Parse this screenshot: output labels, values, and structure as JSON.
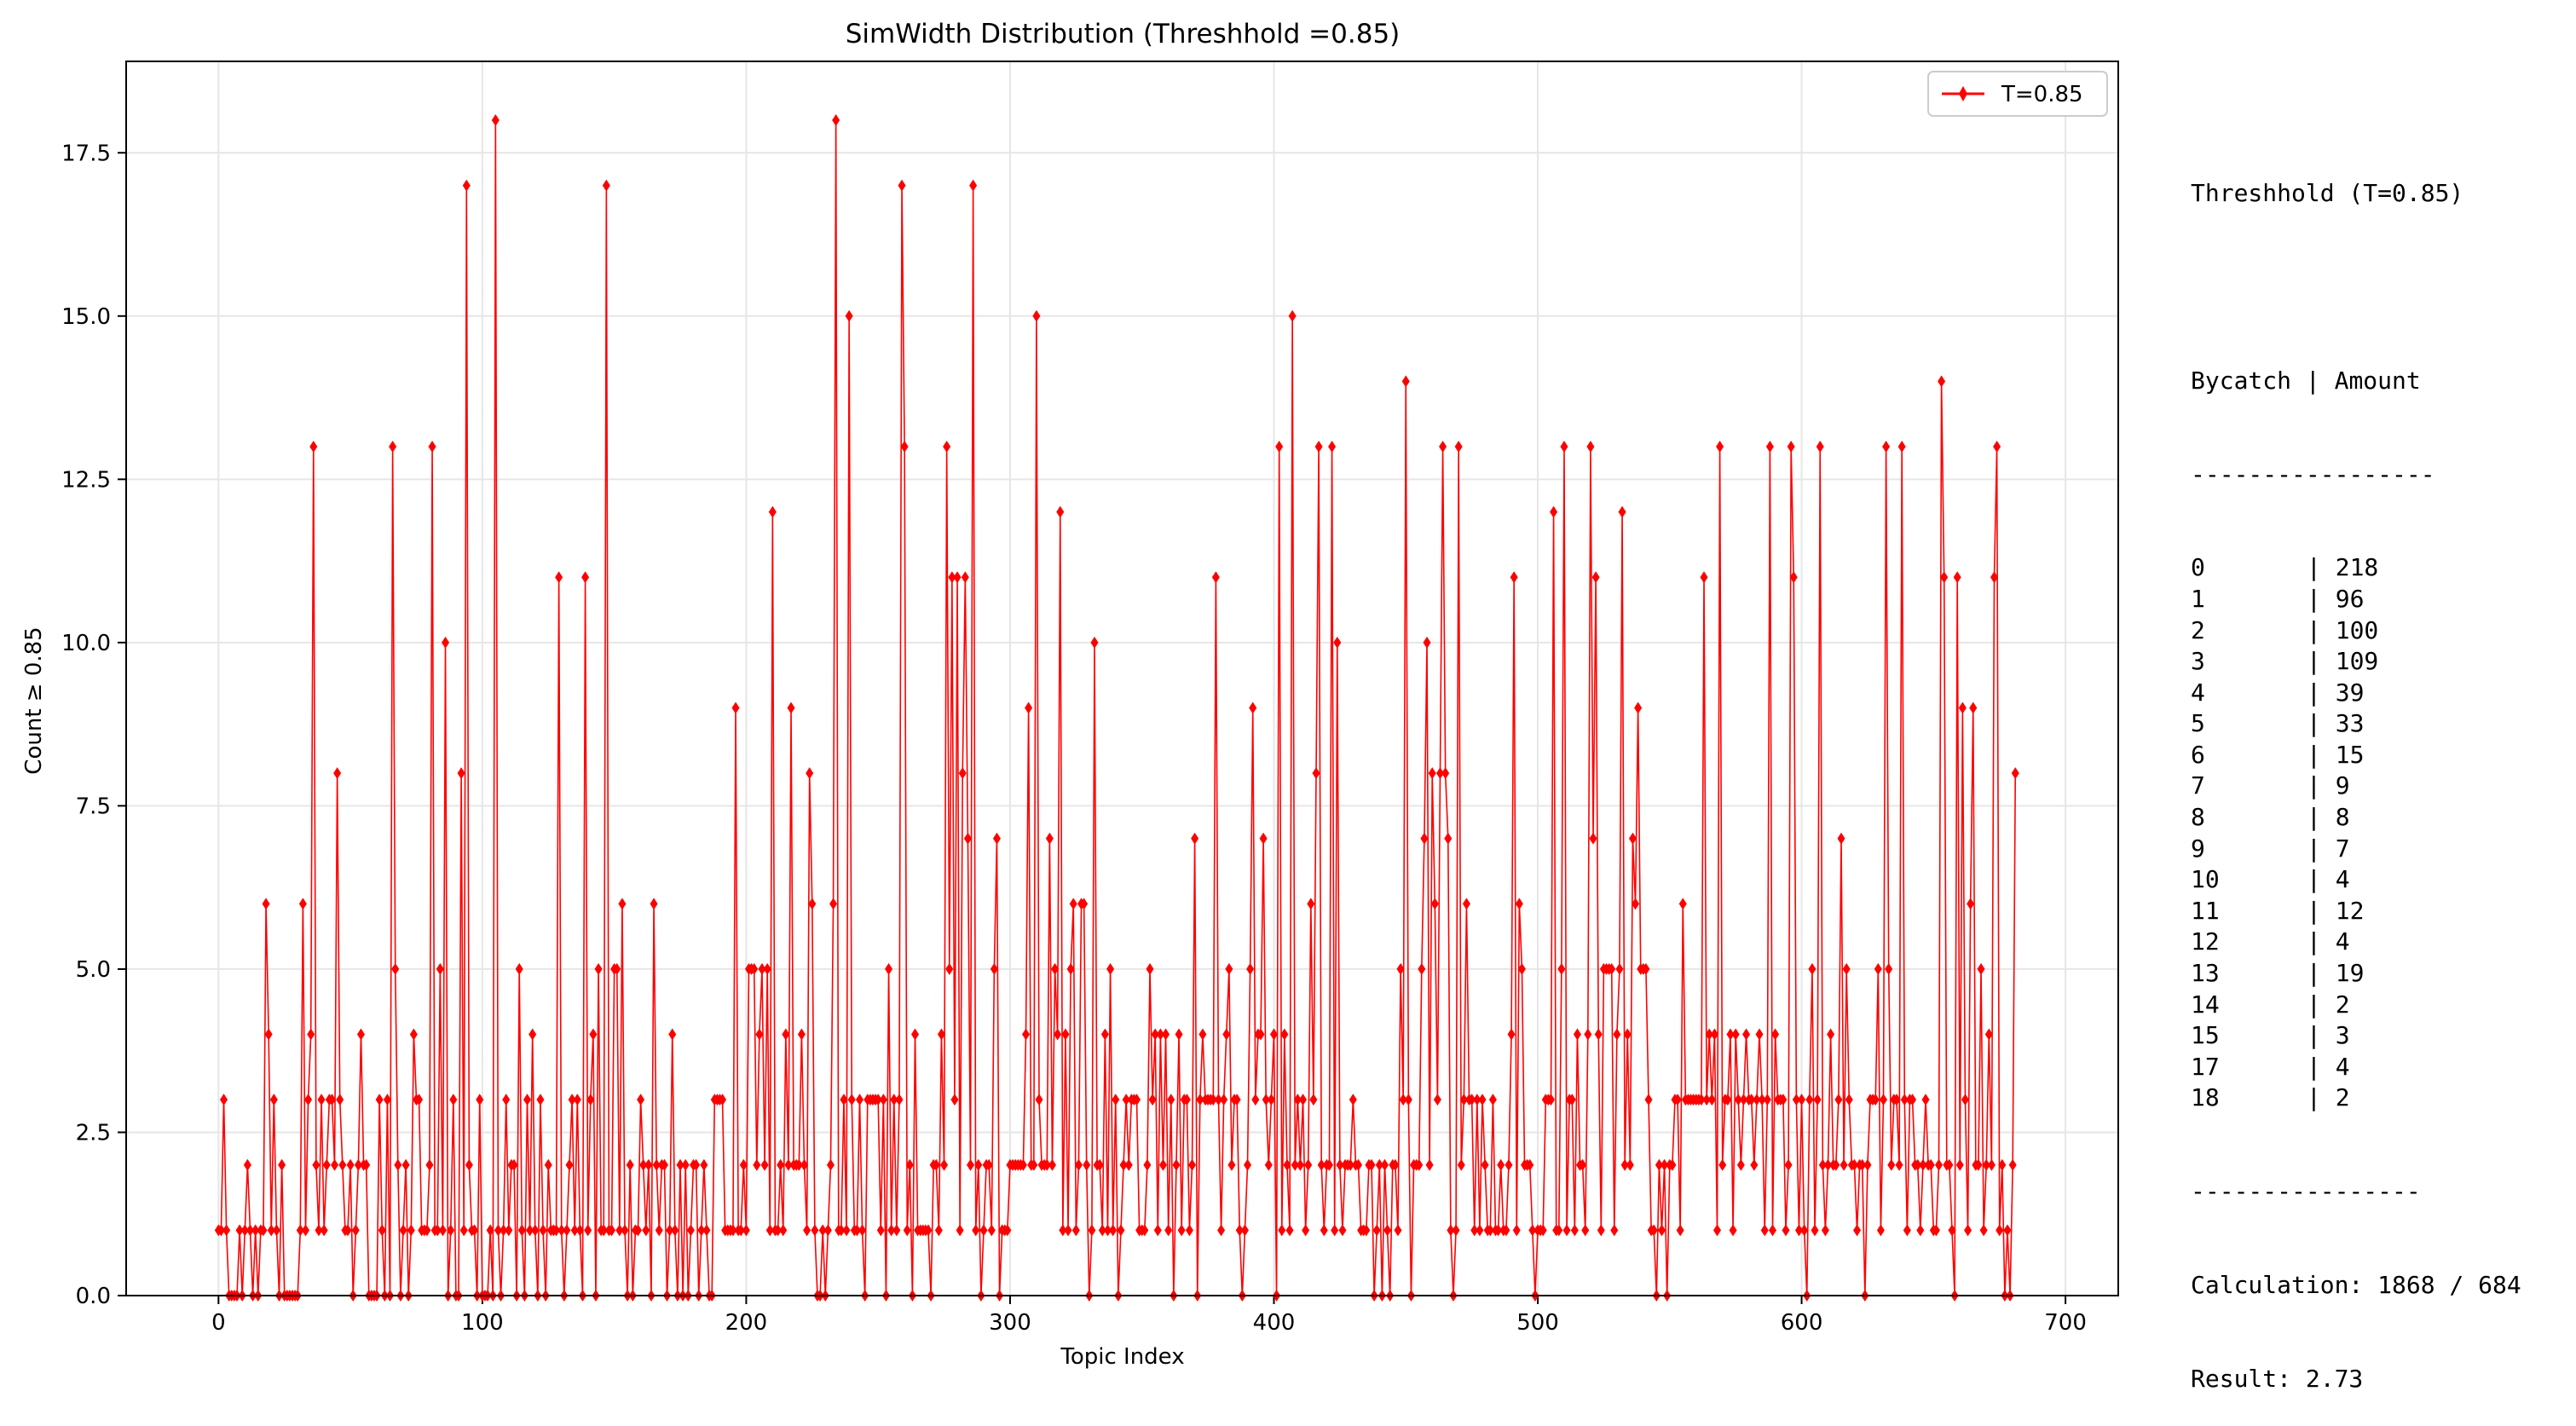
{
  "colors": {
    "series": "#ff0000",
    "grid": "#e6e6e6",
    "axis": "#000000"
  },
  "chart_data": {
    "type": "line",
    "title": "SimWidth Distribution (Threshhold =0.85)",
    "xlabel": "Topic Index",
    "ylabel": "Count ≥ 0.85",
    "xlim": [
      -35,
      720
    ],
    "ylim": [
      0,
      18.9
    ],
    "xticks": [
      0,
      100,
      200,
      300,
      400,
      500,
      600,
      700
    ],
    "yticks": [
      0.0,
      2.5,
      5.0,
      7.5,
      10.0,
      12.5,
      15.0,
      17.5
    ],
    "xtick_labels": [
      "0",
      "100",
      "200",
      "300",
      "400",
      "500",
      "600",
      "700"
    ],
    "ytick_labels": [
      "0.0",
      "2.5",
      "5.0",
      "7.5",
      "10.0",
      "12.5",
      "15.0",
      "17.5"
    ],
    "grid": true,
    "legend_position": "top-right",
    "series": [
      {
        "name": "T=0.85",
        "marker": "diamond",
        "x_start": 0,
        "values": [
          1,
          1,
          3,
          1,
          0,
          0,
          0,
          0,
          1,
          0,
          1,
          2,
          1,
          0,
          1,
          0,
          1,
          1,
          6,
          4,
          1,
          3,
          1,
          0,
          2,
          0,
          0,
          0,
          0,
          0,
          0,
          1,
          6,
          1,
          3,
          4,
          13,
          2,
          1,
          3,
          1,
          2,
          3,
          3,
          2,
          8,
          3,
          2,
          1,
          1,
          2,
          0,
          1,
          2,
          4,
          2,
          2,
          0,
          0,
          0,
          0,
          3,
          1,
          0,
          3,
          0,
          13,
          5,
          2,
          0,
          1,
          2,
          0,
          1,
          4,
          3,
          3,
          1,
          1,
          1,
          2,
          13,
          1,
          1,
          5,
          1,
          10,
          0,
          1,
          3,
          0,
          0,
          8,
          1,
          17,
          2,
          1,
          1,
          0,
          3,
          0,
          0,
          0,
          1,
          0,
          18,
          1,
          0,
          1,
          3,
          1,
          2,
          2,
          0,
          5,
          1,
          0,
          3,
          1,
          4,
          1,
          0,
          3,
          1,
          0,
          2,
          1,
          1,
          1,
          11,
          1,
          0,
          1,
          2,
          3,
          1,
          3,
          1,
          0,
          11,
          1,
          3,
          4,
          0,
          5,
          1,
          1,
          17,
          1,
          1,
          5,
          5,
          1,
          6,
          1,
          0,
          2,
          0,
          1,
          1,
          3,
          2,
          1,
          2,
          0,
          6,
          2,
          1,
          2,
          2,
          0,
          1,
          4,
          1,
          0,
          2,
          0,
          2,
          0,
          1,
          2,
          2,
          0,
          1,
          2,
          1,
          0,
          0,
          3,
          3,
          3,
          3,
          1,
          1,
          1,
          1,
          9,
          1,
          1,
          2,
          1,
          5,
          5,
          5,
          2,
          4,
          5,
          2,
          5,
          1,
          12,
          1,
          1,
          2,
          1,
          4,
          2,
          9,
          2,
          2,
          2,
          4,
          2,
          1,
          8,
          6,
          1,
          0,
          0,
          1,
          0,
          1,
          2,
          6,
          18,
          1,
          1,
          3,
          1,
          15,
          3,
          1,
          1,
          3,
          1,
          0,
          3,
          3,
          3,
          3,
          3,
          1,
          3,
          0,
          5,
          1,
          3,
          1,
          3,
          17,
          13,
          1,
          2,
          0,
          4,
          1,
          1,
          1,
          1,
          1,
          0,
          2,
          2,
          1,
          4,
          2,
          13,
          5,
          11,
          3,
          11,
          1,
          8,
          11,
          7,
          2,
          17,
          1,
          2,
          0,
          1,
          2,
          2,
          1,
          5,
          7,
          0,
          1,
          1,
          1,
          2,
          2,
          2,
          2,
          2,
          2,
          4,
          9,
          2,
          2,
          15,
          3,
          2,
          2,
          2,
          7,
          2,
          5,
          4,
          12,
          1,
          4,
          1,
          5,
          6,
          1,
          2,
          6,
          6,
          2,
          0,
          1,
          10,
          2,
          2,
          1,
          4,
          1,
          5,
          1,
          3,
          0,
          1,
          2,
          3,
          2,
          3,
          3,
          3,
          1,
          1,
          1,
          2,
          5,
          3,
          4,
          1,
          4,
          2,
          4,
          1,
          3,
          0,
          2,
          4,
          1,
          3,
          3,
          1,
          2,
          7,
          0,
          3,
          4,
          3,
          3,
          3,
          3,
          11,
          3,
          1,
          3,
          4,
          5,
          2,
          3,
          3,
          1,
          0,
          1,
          2,
          5,
          9,
          3,
          4,
          4,
          7,
          3,
          2,
          3,
          4,
          0,
          13,
          1,
          4,
          2,
          1,
          15,
          2,
          3,
          2,
          3,
          1,
          2,
          6,
          3,
          8,
          13,
          2,
          1,
          2,
          2,
          13,
          1,
          10,
          2,
          1,
          2,
          2,
          2,
          3,
          2,
          2,
          1,
          1,
          1,
          2,
          2,
          0,
          1,
          2,
          0,
          2,
          1,
          0,
          2,
          2,
          1,
          5,
          3,
          14,
          3,
          0,
          2,
          2,
          2,
          5,
          7,
          10,
          2,
          8,
          6,
          3,
          8,
          13,
          8,
          7,
          1,
          0,
          1,
          13,
          2,
          3,
          6,
          3,
          3,
          1,
          3,
          1,
          3,
          2,
          1,
          1,
          3,
          1,
          1,
          2,
          1,
          1,
          2,
          4,
          11,
          1,
          6,
          5,
          2,
          2,
          2,
          1,
          0,
          1,
          1,
          1,
          3,
          3,
          3,
          12,
          1,
          1,
          5,
          13,
          1,
          3,
          3,
          1,
          4,
          2,
          2,
          1,
          4,
          13,
          7,
          11,
          4,
          1,
          5,
          5,
          5,
          5,
          1,
          4,
          5,
          12,
          2,
          4,
          2,
          7,
          6,
          9,
          5,
          5,
          5,
          3,
          1,
          1,
          0,
          2,
          1,
          2,
          0,
          2,
          2,
          3,
          3,
          1,
          6,
          3,
          3,
          3,
          3,
          3,
          3,
          3,
          11,
          3,
          4,
          3,
          4,
          1,
          13,
          2,
          3,
          3,
          4,
          1,
          4,
          3,
          2,
          3,
          4,
          3,
          3,
          2,
          3,
          4,
          3,
          1,
          3,
          13,
          1,
          4,
          3,
          3,
          3,
          1,
          2,
          13,
          11,
          3,
          1,
          3,
          1,
          0,
          3,
          5,
          1,
          3,
          13,
          2,
          1,
          2,
          4,
          2,
          2,
          3,
          7,
          2,
          5,
          3,
          2,
          2,
          1,
          2,
          2,
          0,
          2,
          3,
          3,
          3,
          5,
          1,
          3,
          13,
          5,
          2,
          3,
          3,
          2,
          13,
          3,
          1,
          3,
          3,
          2,
          2,
          1,
          2,
          3,
          2,
          2,
          1,
          1,
          2,
          14,
          11,
          2,
          2,
          1,
          0,
          11,
          2,
          9,
          3,
          1,
          6,
          9,
          2,
          2,
          5,
          1,
          2,
          4,
          2,
          11,
          13,
          1,
          2,
          0,
          1,
          0,
          2,
          8
        ]
      }
    ]
  },
  "side_panel": {
    "title": "Threshhold (T=0.85)",
    "header_left": "Bycatch",
    "header_sep": "|",
    "header_right": "Amount",
    "divider": "-----------------",
    "rows": [
      {
        "k": "0",
        "v": "218"
      },
      {
        "k": "1",
        "v": "96"
      },
      {
        "k": "2",
        "v": "100"
      },
      {
        "k": "3",
        "v": "109"
      },
      {
        "k": "4",
        "v": "39"
      },
      {
        "k": "5",
        "v": "33"
      },
      {
        "k": "6",
        "v": "15"
      },
      {
        "k": "7",
        "v": "9"
      },
      {
        "k": "8",
        "v": "8"
      },
      {
        "k": "9",
        "v": "7"
      },
      {
        "k": "10",
        "v": "4"
      },
      {
        "k": "11",
        "v": "12"
      },
      {
        "k": "12",
        "v": "4"
      },
      {
        "k": "13",
        "v": "19"
      },
      {
        "k": "14",
        "v": "2"
      },
      {
        "k": "15",
        "v": "3"
      },
      {
        "k": "17",
        "v": "4"
      },
      {
        "k": "18",
        "v": "2"
      }
    ],
    "divider2": "----------------",
    "calculation": "Calculation: 1868 / 684",
    "result": "Result: 2.73"
  }
}
